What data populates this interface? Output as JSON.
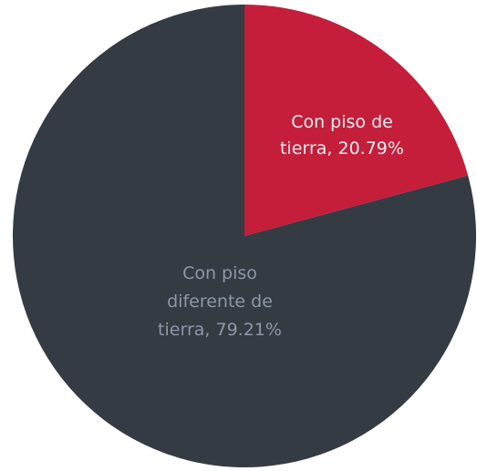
{
  "chart_data": {
    "type": "pie",
    "title": "",
    "slices": [
      {
        "label_lines": [
          "Con piso de",
          "tierra, 20.79%"
        ],
        "value": 20.79,
        "color": "#c41e3a",
        "label_color": "#e8eef2"
      },
      {
        "label_lines": [
          "Con piso",
          "diferente de",
          "tierra, 79.21%"
        ],
        "value": 79.21,
        "color": "#353b43",
        "label_color": "#8c97a8"
      }
    ],
    "start_angle": "12 o'clock",
    "direction": "clockwise",
    "legend": "none"
  }
}
